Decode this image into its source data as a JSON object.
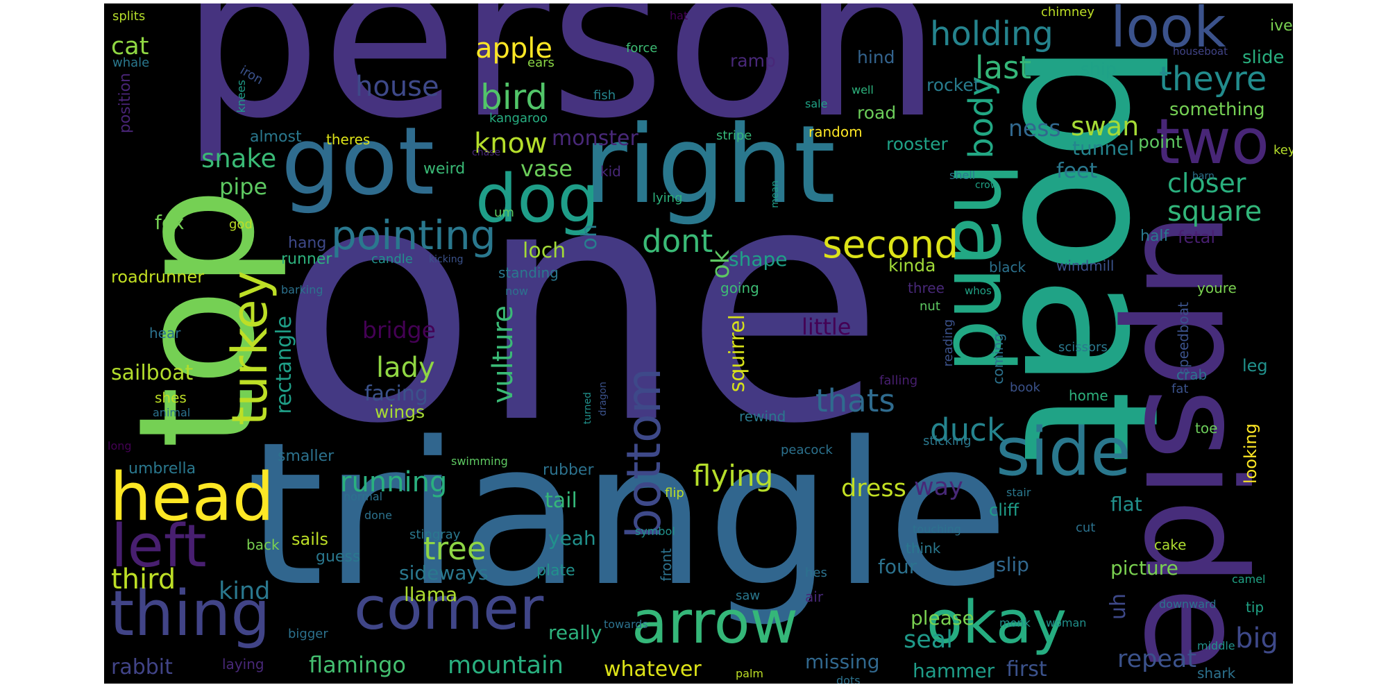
{
  "palette": {
    "purple": "#472d7b",
    "indigo": "#3b518b",
    "blue": "#2c728e",
    "teal": "#21918c",
    "green": "#28ae80",
    "lime": "#5ec962",
    "lightgreen": "#addc30",
    "yellow": "#fde725",
    "dark": "#440154"
  },
  "words": {
    "one": "one",
    "person": "person",
    "triangle": "triangle",
    "boat": "boat",
    "upside": "upside",
    "top": "top",
    "got": "got",
    "right": "right",
    "dog": "dog",
    "hand": "hand",
    "look": "look",
    "two": "two",
    "side": "side",
    "head": "head",
    "thing": "thing",
    "corner": "corner",
    "arrow": "arrow",
    "okay": "okay",
    "left": "left",
    "turkey": "turkey",
    "bottom": "bottom",
    "pointing": "pointing",
    "second": "second",
    "body": "body",
    "holding": "holding",
    "theyre": "theyre",
    "last": "last",
    "bird": "bird",
    "apple": "apple",
    "house": "house",
    "know": "know",
    "cat": "cat",
    "snake": "snake",
    "vase": "vase",
    "pipe": "pipe",
    "dont": "dont",
    "square": "square",
    "closer": "closer",
    "swan": "swan",
    "ness": "ness",
    "monster": "monster",
    "loch": "loch",
    "oh": "oh",
    "ok": "ok",
    "shape": "shape",
    "fox": "fox",
    "vulture": "vulture",
    "lady": "lady",
    "bridge": "bridge",
    "thats": "thats",
    "duck": "duck",
    "flying": "flying",
    "running": "running",
    "dress": "dress",
    "tree": "tree",
    "mountain": "mountain",
    "flamingo": "flamingo",
    "whatever": "whatever",
    "seal": "seal",
    "sailboat": "sailboat",
    "rectangle": "rectangle",
    "facing": "facing",
    "wings": "wings",
    "squirrel": "squirrel",
    "little": "little",
    "kinda": "kinda",
    "feet": "feet",
    "tunnel": "tunnel",
    "rooster": "rooster",
    "point": "point",
    "something": "something",
    "slide": "slide",
    "ship": "ship",
    "rocket": "rocket",
    "road": "road",
    "hind": "hind",
    "ramp": "ramp",
    "force": "force",
    "ears": "ears",
    "fish": "fish",
    "kangaroo": "kangaroo",
    "chimney": "chimney",
    "hat": "hat",
    "splits": "splits",
    "whale": "whale",
    "iron": "iron",
    "knees": "knees",
    "position": "position",
    "almost": "almost",
    "theres": "theres",
    "weird": "weird",
    "chase": "chase",
    "kid": "kid",
    "stripe": "stripe",
    "random": "random",
    "sale": "sale",
    "well": "well",
    "houseboat": "houseboat",
    "ive": "ive",
    "key": "key",
    "shell": "shell",
    "crow": "crow",
    "barn": "barn",
    "mean": "mean",
    "lying": "lying",
    "um": "um",
    "god": "god",
    "hang": "hang",
    "runner": "runner",
    "candle": "candle",
    "kicking": "kicking",
    "roadrunner": "roadrunner",
    "standing": "standing",
    "barking": "barking",
    "now": "now",
    "going": "going",
    "three": "three",
    "whos": "whos",
    "nut": "nut",
    "windmill": "windmill",
    "half": "half",
    "fetal": "fetal",
    "black": "black",
    "youre": "youre",
    "hear": "hear",
    "reading": "reading",
    "coming": "coming",
    "speedboat": "speedboat",
    "scissors": "scissors",
    "leg": "leg",
    "crab": "crab",
    "falling": "falling",
    "book": "book",
    "home": "home",
    "fat": "fat",
    "shes": "shes",
    "animal": "animal",
    "turned": "turned",
    "dragon": "dragon",
    "rewind": "rewind",
    "umbrella": "umbrella",
    "smaller": "smaller",
    "peacock": "peacock",
    "sticking": "sticking",
    "long": "long",
    "swimming": "swimming",
    "rubber": "rubber",
    "looking": "looking",
    "toe": "toe",
    "tail": "tail",
    "flip": "flip",
    "way": "way",
    "stair": "stair",
    "cliff": "cliff",
    "flat": "flat",
    "normal": "normal",
    "done": "done",
    "touching": "touching",
    "stingray": "stingray",
    "sails": "sails",
    "back": "back",
    "symbol": "symbol",
    "yeah": "yeah",
    "cut": "cut",
    "think": "think",
    "guess": "guess",
    "cake": "cake",
    "third": "third",
    "sideways": "sideways",
    "plate": "plate",
    "front": "front",
    "four": "four",
    "slip": "slip",
    "picture": "picture",
    "hes": "hes",
    "camel": "camel",
    "kind": "kind",
    "llama": "llama",
    "saw": "saw",
    "air": "air",
    "uh": "uh",
    "downward": "downward",
    "tip": "tip",
    "monk": "monk",
    "woman": "woman",
    "towards": "towards",
    "please": "please",
    "middle": "middle",
    "bigger": "bigger",
    "really": "really",
    "big": "big",
    "repeat": "repeat",
    "rabbit": "rabbit",
    "laying": "laying",
    "missing": "missing",
    "hammer": "hammer",
    "first": "first",
    "palm": "palm",
    "dots": "dots",
    "shark": "shark"
  }
}
